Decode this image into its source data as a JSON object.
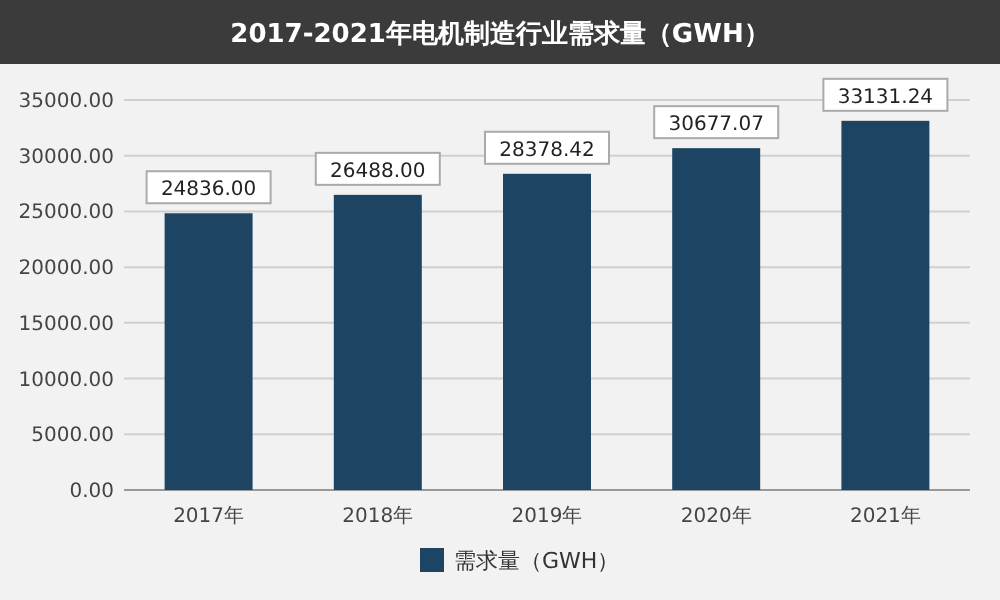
{
  "chart_data": {
    "type": "bar",
    "title": "2017-2021年电机制造行业需求量（GWH）",
    "categories": [
      "2017年",
      "2018年",
      "2019年",
      "2020年",
      "2021年"
    ],
    "series": [
      {
        "name": "需求量（GWH）",
        "color": "#1d4563",
        "values": [
          24836.0,
          26488.0,
          28378.42,
          30677.07,
          33131.24
        ]
      }
    ],
    "value_labels": [
      "24836.00",
      "26488.00",
      "28378.42",
      "30677.07",
      "33131.24"
    ],
    "ylim": [
      0,
      35000
    ],
    "yticks": [
      {
        "value": 0,
        "label": "0.00"
      },
      {
        "value": 5000,
        "label": "5000.00"
      },
      {
        "value": 10000,
        "label": "10000.00"
      },
      {
        "value": 15000,
        "label": "15000.00"
      },
      {
        "value": 20000,
        "label": "20000.00"
      },
      {
        "value": 25000,
        "label": "25000.00"
      },
      {
        "value": 30000,
        "label": "30000.00"
      },
      {
        "value": 35000,
        "label": "35000.00"
      }
    ],
    "grid": "y",
    "legend": "bottom"
  }
}
